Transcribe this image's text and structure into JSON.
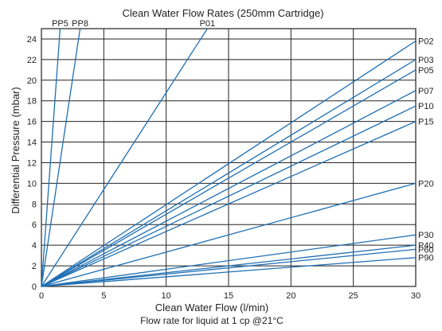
{
  "chart_data": {
    "type": "line",
    "title": "Clean Water Flow Rates (250mm Cartridge)",
    "xlabel": "Clean Water Flow (l/min)",
    "ylabel": "Differential Pressure (mbar)",
    "note": "Flow rate for liquid at 1 cp @21°C",
    "xlim": [
      0,
      30
    ],
    "ylim": [
      0,
      25
    ],
    "xticks": [
      0,
      5,
      10,
      15,
      20,
      25,
      30
    ],
    "yticks": [
      0,
      2,
      4,
      6,
      8,
      10,
      12,
      14,
      16,
      18,
      20,
      22,
      24
    ],
    "grid": true,
    "line_color": "#1f6fb4",
    "series": [
      {
        "name": "PP5",
        "x": [
          0,
          1.5
        ],
        "y": [
          0,
          25
        ]
      },
      {
        "name": "PP8",
        "x": [
          0,
          3.1
        ],
        "y": [
          0,
          25
        ]
      },
      {
        "name": "P01",
        "x": [
          0,
          13.3
        ],
        "y": [
          0,
          25
        ]
      },
      {
        "name": "P02",
        "x": [
          0,
          30
        ],
        "y": [
          0,
          23.8
        ]
      },
      {
        "name": "P03",
        "x": [
          0,
          30
        ],
        "y": [
          0,
          22
        ]
      },
      {
        "name": "P05",
        "x": [
          0,
          30
        ],
        "y": [
          0,
          21
        ]
      },
      {
        "name": "P07",
        "x": [
          0,
          30
        ],
        "y": [
          0,
          19
        ]
      },
      {
        "name": "P10",
        "x": [
          0,
          30
        ],
        "y": [
          0,
          17.5
        ]
      },
      {
        "name": "P15",
        "x": [
          0,
          30
        ],
        "y": [
          0,
          16
        ]
      },
      {
        "name": "P20",
        "x": [
          0,
          30
        ],
        "y": [
          0,
          10
        ]
      },
      {
        "name": "P30",
        "x": [
          0,
          30
        ],
        "y": [
          0,
          5
        ]
      },
      {
        "name": "P40",
        "x": [
          0,
          30
        ],
        "y": [
          0,
          4
        ]
      },
      {
        "name": "P60",
        "x": [
          0,
          30
        ],
        "y": [
          0,
          3.6
        ]
      },
      {
        "name": "P90",
        "x": [
          0,
          30
        ],
        "y": [
          0,
          2.8
        ]
      }
    ]
  }
}
